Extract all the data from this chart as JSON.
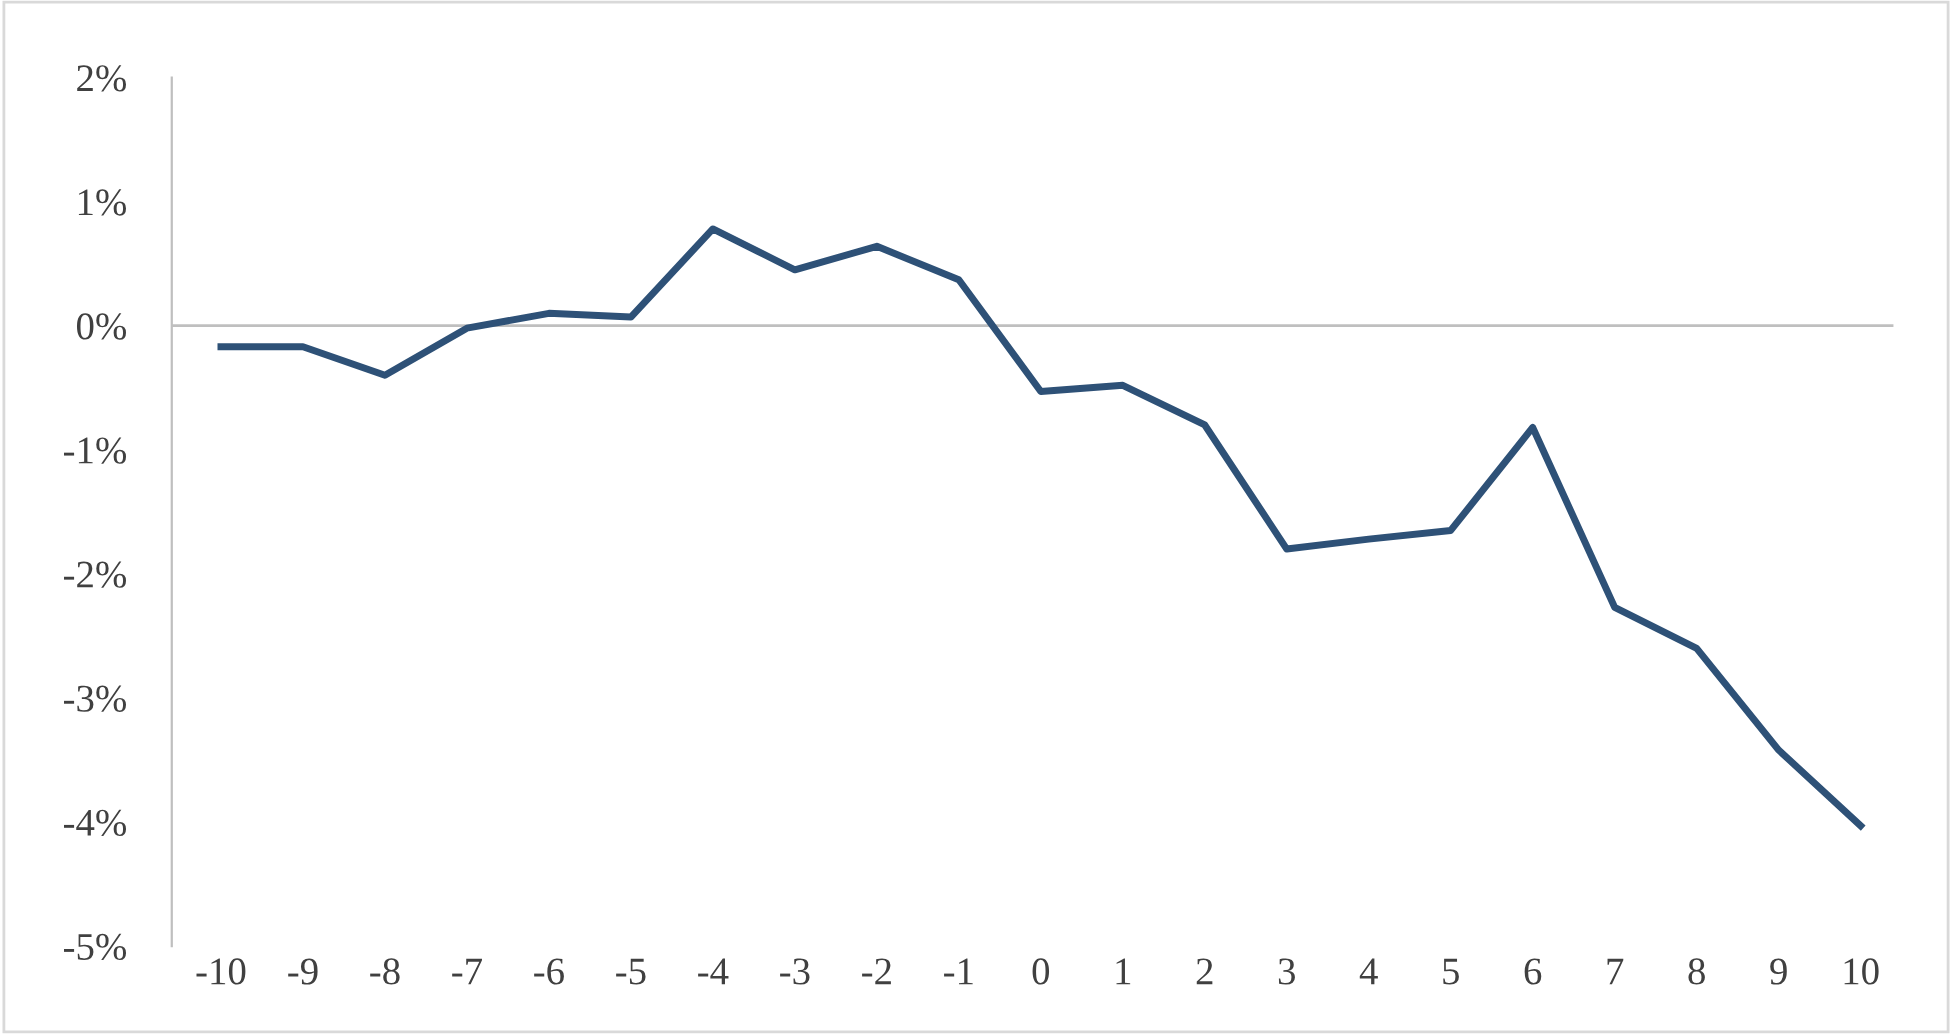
{
  "chart_data": {
    "type": "line",
    "categories": [
      "-10",
      "-9",
      "-8",
      "-7",
      "-6",
      "-5",
      "-4",
      "-3",
      "-2",
      "-1",
      "0",
      "1",
      "2",
      "3",
      "4",
      "5",
      "6",
      "7",
      "8",
      "9",
      "10"
    ],
    "series": [
      {
        "color": "#2e5177",
        "values": [
          -0.17,
          -0.17,
          -0.4,
          -0.02,
          0.1,
          0.07,
          0.78,
          0.45,
          0.64,
          0.37,
          -0.53,
          -0.48,
          -0.8,
          -1.8,
          -1.72,
          -1.65,
          -0.82,
          -2.27,
          -2.6,
          -3.42,
          -4.03
        ]
      }
    ],
    "ylim": [
      -5,
      2
    ],
    "yticks": [
      {
        "value": -5,
        "label": "-5%"
      },
      {
        "value": -4,
        "label": "-4%"
      },
      {
        "value": -3,
        "label": "-3%"
      },
      {
        "value": -2,
        "label": "-2%"
      },
      {
        "value": -1,
        "label": "-1%"
      },
      {
        "value": 0,
        "label": "0%"
      },
      {
        "value": 1,
        "label": "1%"
      },
      {
        "value": 2,
        "label": "2%"
      }
    ],
    "ref_lines": [
      {
        "axis": "y",
        "value": 0,
        "color": "#bfbfbf"
      }
    ],
    "grid": false,
    "legend": false,
    "marker": "none",
    "line_style": "solid"
  }
}
